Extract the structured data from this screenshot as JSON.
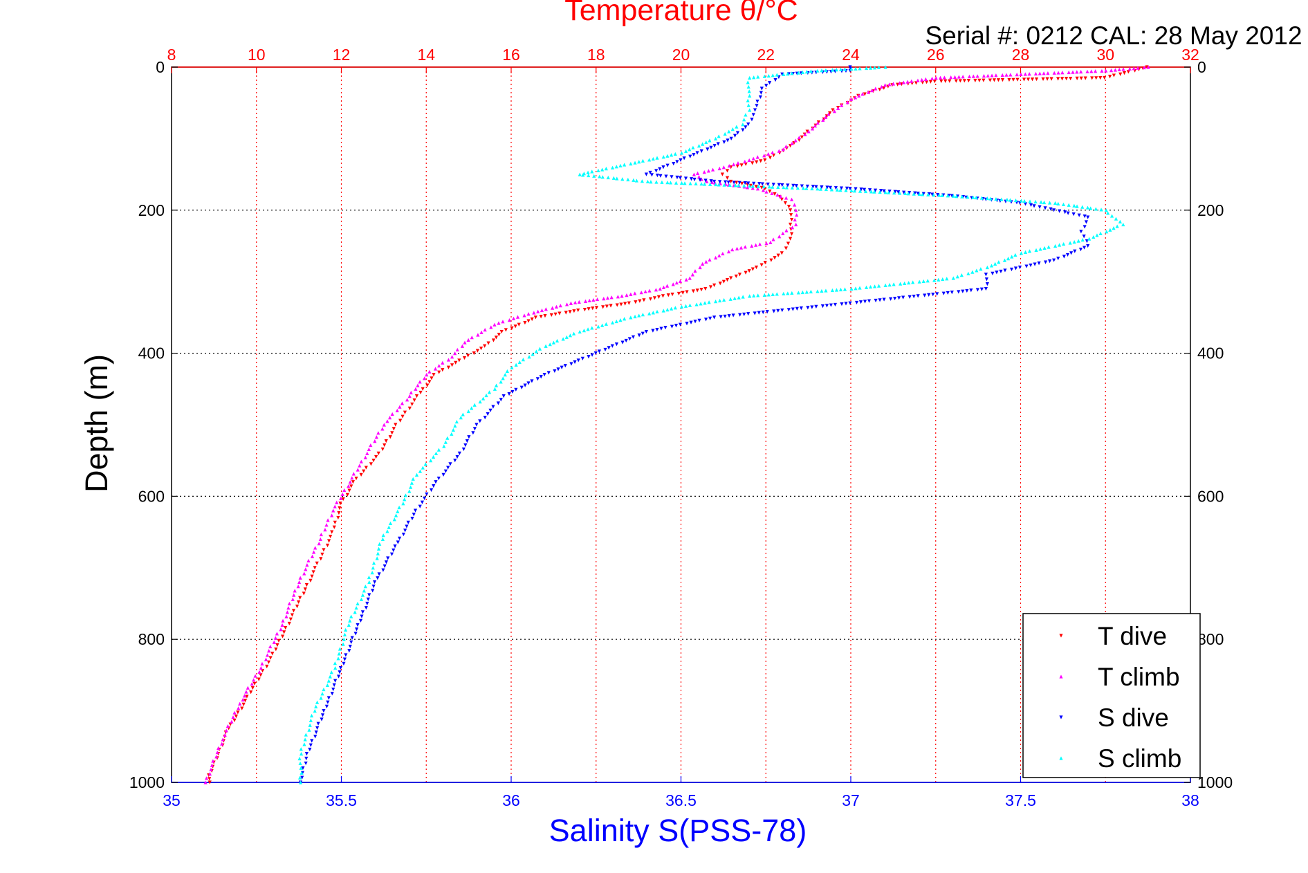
{
  "chart_data": {
    "type": "scatter",
    "title": "Temperature θ/°C",
    "subtitle": "Serial #: 0212  CAL: 28 May 2012",
    "xlabel": "Salinity S(PSS-78)",
    "ylabel": "Depth (m)",
    "x_bottom": {
      "label": "Salinity S(PSS-78)",
      "range": [
        35,
        38
      ],
      "ticks": [
        "35",
        "35.5",
        "36",
        "36.5",
        "37",
        "37.5",
        "38"
      ],
      "color": "#0000ff"
    },
    "x_top": {
      "label": "Temperature θ/°C",
      "range": [
        8,
        32
      ],
      "ticks": [
        "8",
        "10",
        "12",
        "14",
        "16",
        "18",
        "20",
        "22",
        "24",
        "26",
        "28",
        "30",
        "32"
      ],
      "color": "#ff0000"
    },
    "y": {
      "range": [
        0,
        1000
      ],
      "reversed": true,
      "ticks": [
        "0",
        "200",
        "400",
        "600",
        "800",
        "1000"
      ]
    },
    "grid": true,
    "legend_position": "bottom-right",
    "legend": [
      {
        "label": "T dive",
        "color": "#ff0000"
      },
      {
        "label": "T climb",
        "color": "#ff00ff"
      },
      {
        "label": "S dive",
        "color": "#0000ff"
      },
      {
        "label": "S climb",
        "color": "#00ffff"
      }
    ],
    "series": [
      {
        "name": "T dive",
        "axis": "top",
        "color": "#ff0000",
        "points": [
          [
            31,
            0
          ],
          [
            30,
            15
          ],
          [
            26,
            20
          ],
          [
            25,
            25
          ],
          [
            24.2,
            40
          ],
          [
            23.6,
            60
          ],
          [
            23,
            90
          ],
          [
            22.6,
            110
          ],
          [
            22,
            130
          ],
          [
            21.2,
            140
          ],
          [
            21,
            150
          ],
          [
            21.2,
            160
          ],
          [
            22,
            170
          ],
          [
            22.4,
            185
          ],
          [
            22.6,
            200
          ],
          [
            22.6,
            220
          ],
          [
            22.6,
            240
          ],
          [
            22.4,
            260
          ],
          [
            21.8,
            280
          ],
          [
            21.2,
            295
          ],
          [
            20.6,
            310
          ],
          [
            19.6,
            320
          ],
          [
            18.8,
            330
          ],
          [
            17.6,
            340
          ],
          [
            16.6,
            350
          ],
          [
            15.8,
            370
          ],
          [
            15.4,
            390
          ],
          [
            14.8,
            410
          ],
          [
            14.2,
            430
          ],
          [
            13.8,
            460
          ],
          [
            13.3,
            500
          ],
          [
            12.9,
            540
          ],
          [
            12.3,
            580
          ],
          [
            12.0,
            610
          ],
          [
            11.8,
            650
          ],
          [
            11.4,
            700
          ],
          [
            10.9,
            760
          ],
          [
            10.4,
            820
          ],
          [
            9.8,
            880
          ],
          [
            9.3,
            930
          ],
          [
            8.9,
            990
          ],
          [
            8.9,
            1000
          ]
        ]
      },
      {
        "name": "T climb",
        "axis": "top",
        "color": "#ff00ff",
        "points": [
          [
            31,
            0
          ],
          [
            30,
            5
          ],
          [
            28,
            10
          ],
          [
            26,
            15
          ],
          [
            24.8,
            25
          ],
          [
            24,
            45
          ],
          [
            23.4,
            70
          ],
          [
            23,
            90
          ],
          [
            22.4,
            115
          ],
          [
            21.6,
            130
          ],
          [
            21,
            140
          ],
          [
            20.3,
            150
          ],
          [
            20.6,
            160
          ],
          [
            21.8,
            170
          ],
          [
            22.6,
            185
          ],
          [
            22.7,
            200
          ],
          [
            22.7,
            220
          ],
          [
            22.1,
            245
          ],
          [
            21.2,
            255
          ],
          [
            20.5,
            275
          ],
          [
            20.2,
            295
          ],
          [
            19.5,
            310
          ],
          [
            18.6,
            320
          ],
          [
            17.4,
            330
          ],
          [
            16.4,
            345
          ],
          [
            15.6,
            360
          ],
          [
            14.9,
            385
          ],
          [
            14.6,
            405
          ],
          [
            14,
            430
          ],
          [
            13.6,
            460
          ],
          [
            13.0,
            500
          ],
          [
            12.6,
            540
          ],
          [
            12.2,
            580
          ],
          [
            11.8,
            620
          ],
          [
            11.5,
            660
          ],
          [
            11.0,
            720
          ],
          [
            10.6,
            780
          ],
          [
            10.1,
            840
          ],
          [
            9.6,
            890
          ],
          [
            9.2,
            940
          ],
          [
            8.8,
            1000
          ]
        ]
      },
      {
        "name": "S dive",
        "axis": "bottom",
        "color": "#0000ff",
        "points": [
          [
            37.0,
            0
          ],
          [
            37.0,
            5
          ],
          [
            36.8,
            10
          ],
          [
            36.74,
            30
          ],
          [
            36.72,
            60
          ],
          [
            36.7,
            80
          ],
          [
            36.65,
            100
          ],
          [
            36.55,
            120
          ],
          [
            36.45,
            140
          ],
          [
            36.4,
            150
          ],
          [
            36.6,
            160
          ],
          [
            37.0,
            170
          ],
          [
            37.3,
            180
          ],
          [
            37.5,
            190
          ],
          [
            37.7,
            210
          ],
          [
            37.68,
            230
          ],
          [
            37.7,
            250
          ],
          [
            37.6,
            270
          ],
          [
            37.5,
            280
          ],
          [
            37.4,
            290
          ],
          [
            37.4,
            310
          ],
          [
            37.2,
            320
          ],
          [
            37.0,
            330
          ],
          [
            36.8,
            340
          ],
          [
            36.6,
            350
          ],
          [
            36.4,
            370
          ],
          [
            36.3,
            390
          ],
          [
            36.2,
            410
          ],
          [
            36.1,
            430
          ],
          [
            35.98,
            460
          ],
          [
            35.9,
            500
          ],
          [
            35.85,
            540
          ],
          [
            35.78,
            580
          ],
          [
            35.72,
            620
          ],
          [
            35.66,
            670
          ],
          [
            35.6,
            720
          ],
          [
            35.55,
            780
          ],
          [
            35.5,
            840
          ],
          [
            35.45,
            900
          ],
          [
            35.4,
            960
          ],
          [
            35.38,
            1000
          ]
        ]
      },
      {
        "name": "S climb",
        "axis": "bottom",
        "color": "#00ffff",
        "points": [
          [
            37.1,
            0
          ],
          [
            36.9,
            5
          ],
          [
            36.7,
            15
          ],
          [
            36.7,
            40
          ],
          [
            36.7,
            60
          ],
          [
            36.68,
            80
          ],
          [
            36.6,
            100
          ],
          [
            36.5,
            120
          ],
          [
            36.35,
            135
          ],
          [
            36.2,
            150
          ],
          [
            36.4,
            160
          ],
          [
            36.9,
            170
          ],
          [
            37.3,
            180
          ],
          [
            37.6,
            190
          ],
          [
            37.75,
            200
          ],
          [
            37.8,
            220
          ],
          [
            37.7,
            240
          ],
          [
            37.5,
            260
          ],
          [
            37.4,
            280
          ],
          [
            37.3,
            295
          ],
          [
            37.0,
            310
          ],
          [
            36.7,
            320
          ],
          [
            36.5,
            335
          ],
          [
            36.35,
            350
          ],
          [
            36.2,
            370
          ],
          [
            36.1,
            390
          ],
          [
            36.0,
            420
          ],
          [
            35.95,
            450
          ],
          [
            35.85,
            490
          ],
          [
            35.8,
            530
          ],
          [
            35.72,
            570
          ],
          [
            35.68,
            610
          ],
          [
            35.62,
            660
          ],
          [
            35.58,
            720
          ],
          [
            35.52,
            780
          ],
          [
            35.48,
            840
          ],
          [
            35.42,
            900
          ],
          [
            35.38,
            960
          ],
          [
            35.38,
            1000
          ]
        ]
      }
    ]
  }
}
